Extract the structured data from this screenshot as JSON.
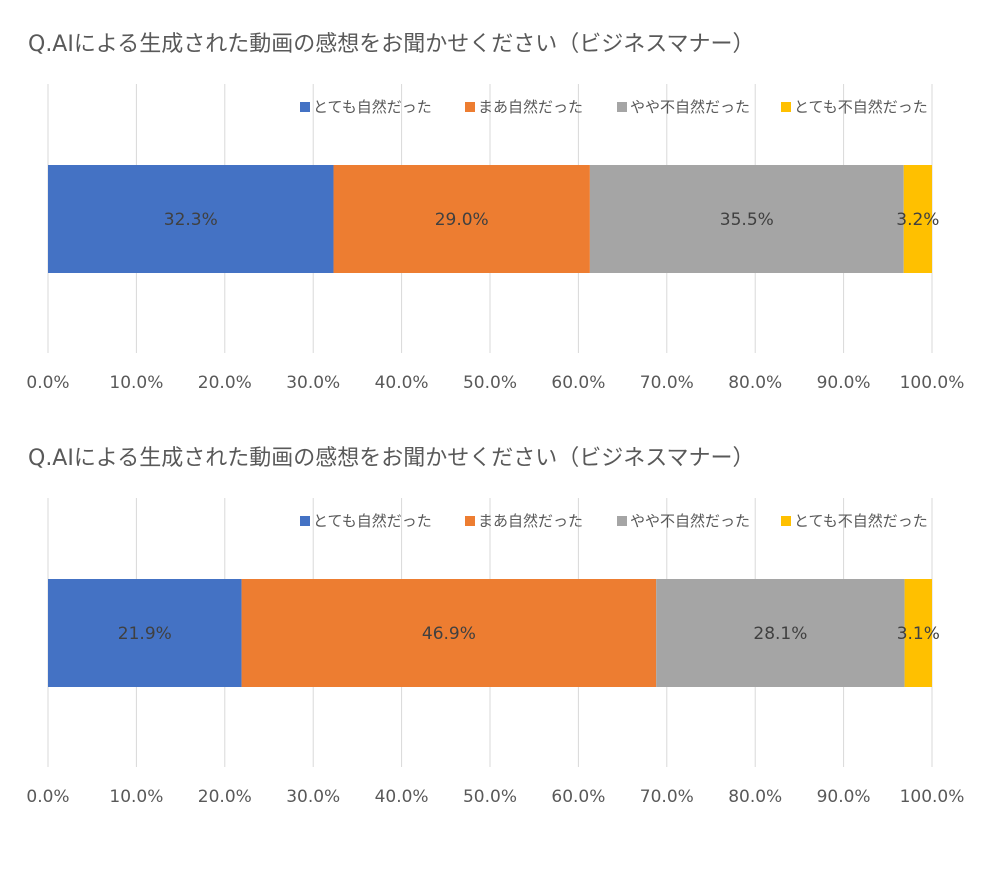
{
  "chart_data": [
    {
      "type": "bar",
      "orientation": "horizontal",
      "stacked": true,
      "title": "Q.AIによる生成された動画の感想をお聞かせください（ビジネスマナー）",
      "categories": [
        ""
      ],
      "series": [
        {
          "name": "とても自然だった",
          "values": [
            32.3
          ],
          "label": "32.3%",
          "color": "#4472C4"
        },
        {
          "name": "まあ自然だった",
          "values": [
            29.0
          ],
          "label": "29.0%",
          "color": "#ED7D31"
        },
        {
          "name": "やや不自然だった",
          "values": [
            35.5
          ],
          "label": "35.5%",
          "color": "#A5A5A5"
        },
        {
          "name": "とても不自然だった",
          "values": [
            3.2
          ],
          "label": "3.2%",
          "color": "#FFC000"
        }
      ],
      "xlim": [
        0,
        100
      ],
      "xticks": [
        "0.0%",
        "10.0%",
        "20.0%",
        "30.0%",
        "40.0%",
        "50.0%",
        "60.0%",
        "70.0%",
        "80.0%",
        "90.0%",
        "100.0%"
      ],
      "grid": true,
      "legend": "top-right"
    },
    {
      "type": "bar",
      "orientation": "horizontal",
      "stacked": true,
      "title": "Q.AIによる生成された動画の感想をお聞かせください（ビジネスマナー）",
      "categories": [
        ""
      ],
      "series": [
        {
          "name": "とても自然だった",
          "values": [
            21.9
          ],
          "label": "21.9%",
          "color": "#4472C4"
        },
        {
          "name": "まあ自然だった",
          "values": [
            46.9
          ],
          "label": "46.9%",
          "color": "#ED7D31"
        },
        {
          "name": "やや不自然だった",
          "values": [
            28.1
          ],
          "label": "28.1%",
          "color": "#A5A5A5"
        },
        {
          "name": "とても不自然だった",
          "values": [
            3.1
          ],
          "label": "3.1%",
          "color": "#FFC000"
        }
      ],
      "xlim": [
        0,
        100
      ],
      "xticks": [
        "0.0%",
        "10.0%",
        "20.0%",
        "30.0%",
        "40.0%",
        "50.0%",
        "60.0%",
        "70.0%",
        "80.0%",
        "90.0%",
        "100.0%"
      ],
      "grid": true,
      "legend": "top-right"
    }
  ]
}
